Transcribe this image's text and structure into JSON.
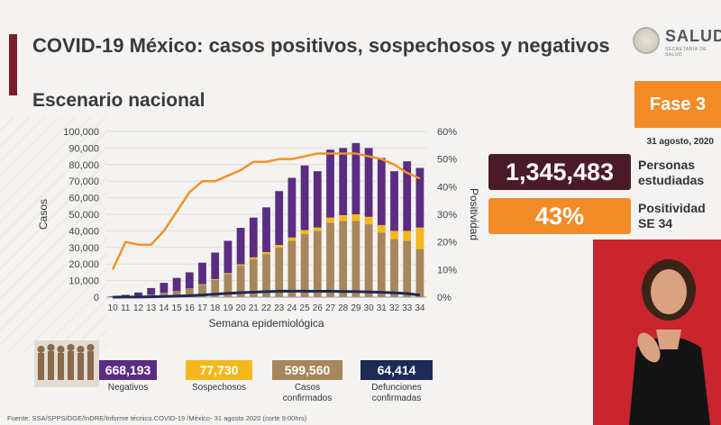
{
  "header": {
    "title": "COVID-19 México: casos positivos, sospechosos y negativos",
    "subtitle": "Escenario nacional"
  },
  "logo": {
    "word": "SALUD",
    "sub": "SECRETARÍA DE SALUD"
  },
  "phase": "Fase 3",
  "date": "31 agosto, 2020",
  "stats": [
    {
      "value": "1,345,483",
      "label": "Personas estudiadas",
      "color": "#4b1a28"
    },
    {
      "value": "43%",
      "label": "Positividad SE 34",
      "color": "#f28c28"
    }
  ],
  "legend": [
    {
      "value": "668,193",
      "label": "Negativos",
      "color": "#5a2d82"
    },
    {
      "value": "77,730",
      "label": "Sospechosos",
      "color": "#f5b81c"
    },
    {
      "value": "599,560",
      "label": "Casos confirmados",
      "color": "#a8865c"
    },
    {
      "value": "64,414",
      "label": "Defunciones confirmadas",
      "color": "#1c2a55"
    }
  ],
  "source": "Fuente: SSA/SPPS/DGE/InDRE/Informe técnico.COVID-19 /México- 31 agosto 2020 (corte 9:00hrs)",
  "chart_data": {
    "type": "bar",
    "stacked": true,
    "xlabel": "Semana epidemiológica",
    "ylabel": "Casos",
    "y2label": "Positividad",
    "ylim": [
      0,
      100000
    ],
    "y2lim": [
      0,
      60
    ],
    "yticks": [
      "0",
      "10,000",
      "20,000",
      "30,000",
      "40,000",
      "50,000",
      "60,000",
      "70,000",
      "80,000",
      "90,000",
      "100,000"
    ],
    "y2ticks": [
      "0%",
      "10%",
      "20%",
      "30%",
      "40%",
      "50%",
      "60%"
    ],
    "categories": [
      "10",
      "11",
      "12",
      "13",
      "14",
      "15",
      "16",
      "17",
      "18",
      "19",
      "20",
      "21",
      "22",
      "23",
      "24",
      "25",
      "26",
      "27",
      "28",
      "29",
      "30",
      "31",
      "32",
      "33",
      "34"
    ],
    "series": [
      {
        "name": "Casos confirmados",
        "color": "#a8865c",
        "values": [
          100,
          400,
          800,
          1500,
          2500,
          3500,
          5000,
          7500,
          10500,
          14000,
          19000,
          23000,
          26000,
          30000,
          34000,
          38000,
          40000,
          45000,
          46000,
          46000,
          44000,
          39000,
          35000,
          34000,
          29000
        ]
      },
      {
        "name": "Sospechosos",
        "color": "#f5b81c",
        "values": [
          0,
          0,
          0,
          0,
          100,
          100,
          200,
          300,
          400,
          500,
          800,
          1000,
          1200,
          1500,
          2000,
          2500,
          2000,
          3000,
          3500,
          4000,
          4500,
          4500,
          5000,
          6000,
          13000
        ]
      },
      {
        "name": "Negativos",
        "color": "#5a2d82",
        "values": [
          500,
          1000,
          2000,
          4000,
          6000,
          8000,
          9800,
          13000,
          16000,
          19500,
          22000,
          24000,
          27000,
          32500,
          36000,
          39000,
          34000,
          41000,
          40500,
          43000,
          41500,
          40500,
          36000,
          42000,
          36000
        ]
      }
    ],
    "lines": [
      {
        "name": "Defunciones confirmadas",
        "color": "#1c2a55",
        "axis": "left",
        "values": [
          0,
          50,
          100,
          200,
          400,
          600,
          900,
          1300,
          1800,
          2300,
          2700,
          3000,
          3300,
          3500,
          3600,
          3600,
          3500,
          3500,
          3400,
          3300,
          3100,
          2900,
          2600,
          2200,
          1200
        ]
      },
      {
        "name": "Positividad",
        "color": "#f0922a",
        "axis": "right",
        "values": [
          10,
          20,
          19,
          19,
          24,
          31,
          38,
          42,
          42,
          44,
          46,
          49,
          49,
          50,
          50,
          51,
          52,
          52,
          52,
          52,
          51,
          50,
          48,
          45,
          43
        ]
      }
    ]
  }
}
